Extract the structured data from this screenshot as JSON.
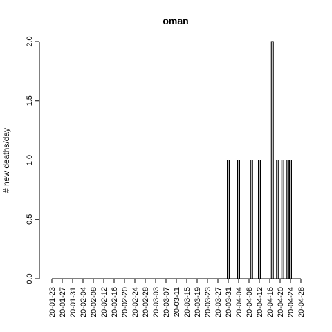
{
  "chart_data": {
    "type": "bar",
    "title": "oman",
    "xlabel": "",
    "ylabel": "# new deaths/day",
    "ylim": [
      0,
      2
    ],
    "yticks": [
      "0.0",
      "0.5",
      "1.0",
      "1.5",
      "2.0"
    ],
    "start_date": "2020-01-23",
    "end_date": "2020-04-28",
    "xtick_labels": [
      "20-01-23",
      "20-01-27",
      "20-01-31",
      "20-02-04",
      "20-02-08",
      "20-02-12",
      "20-02-16",
      "20-02-20",
      "20-02-24",
      "20-02-28",
      "20-03-03",
      "20-03-07",
      "20-03-11",
      "20-03-15",
      "20-03-19",
      "20-03-23",
      "20-03-27",
      "20-03-31",
      "20-04-04",
      "20-04-08",
      "20-04-12",
      "20-04-16",
      "20-04-20",
      "20-04-24",
      "20-04-28"
    ],
    "data": [
      {
        "date": "2020-03-31",
        "value": 1
      },
      {
        "date": "2020-04-04",
        "value": 1
      },
      {
        "date": "2020-04-09",
        "value": 1
      },
      {
        "date": "2020-04-12",
        "value": 1
      },
      {
        "date": "2020-04-17",
        "value": 2
      },
      {
        "date": "2020-04-19",
        "value": 1
      },
      {
        "date": "2020-04-21",
        "value": 1
      },
      {
        "date": "2020-04-23",
        "value": 1
      },
      {
        "date": "2020-04-24",
        "value": 1
      }
    ],
    "grid": false,
    "legend": "none"
  }
}
